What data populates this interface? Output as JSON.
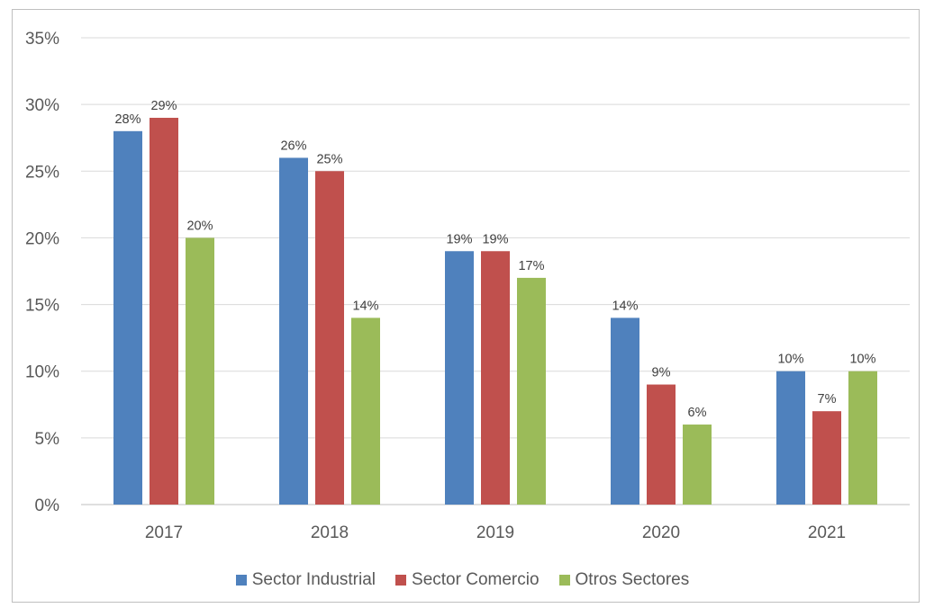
{
  "chart_data": {
    "type": "bar",
    "categories": [
      "2017",
      "2018",
      "2019",
      "2020",
      "2021"
    ],
    "series": [
      {
        "name": "Sector Industrial",
        "color": "#4f81bd",
        "values": [
          28,
          26,
          19,
          14,
          10
        ]
      },
      {
        "name": "Sector Comercio",
        "color": "#c0504d",
        "values": [
          29,
          25,
          19,
          9,
          7
        ]
      },
      {
        "name": "Otros Sectores",
        "color": "#9bbb59",
        "values": [
          20,
          14,
          17,
          6,
          10
        ]
      }
    ],
    "value_suffix": "%",
    "ylim": [
      0,
      35
    ],
    "ystep": 5,
    "grid": true,
    "legend": "bottom"
  }
}
